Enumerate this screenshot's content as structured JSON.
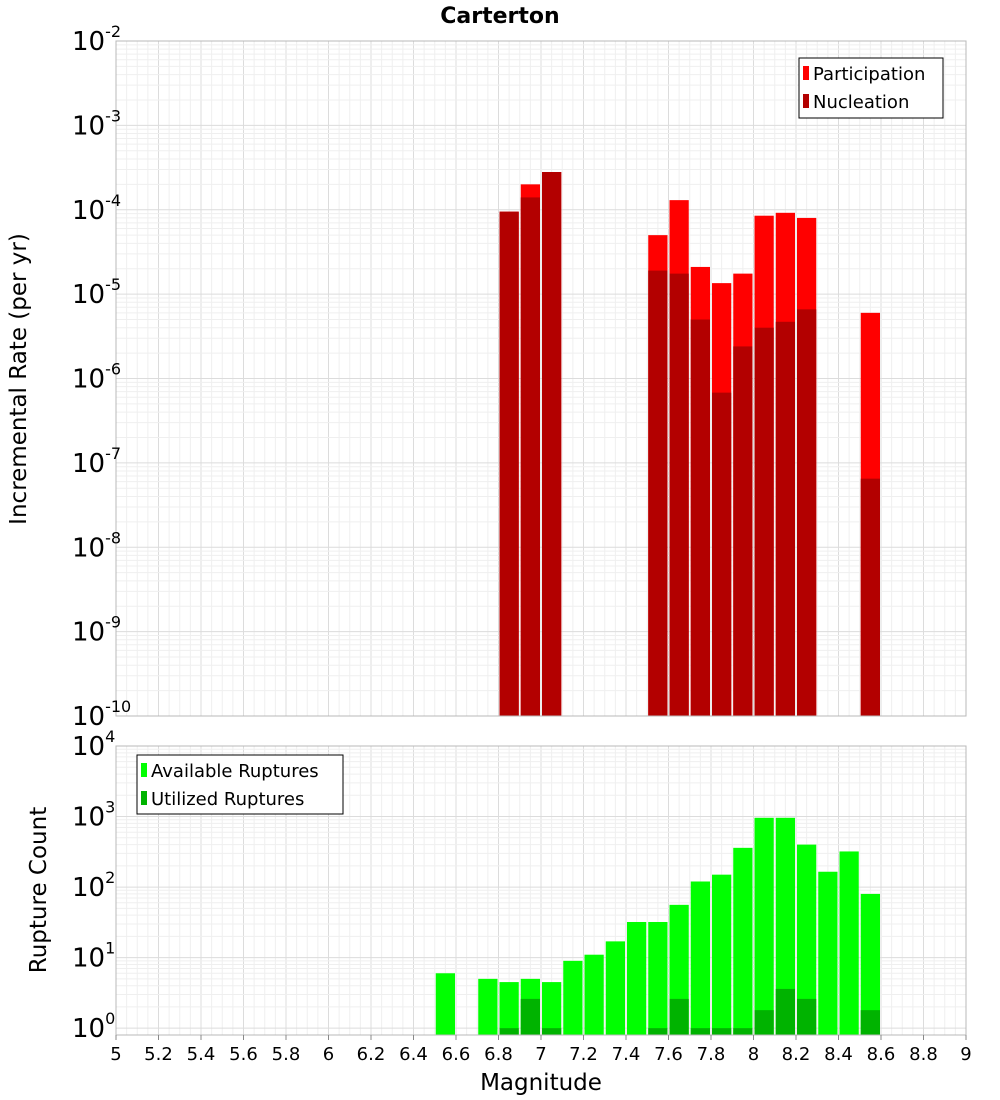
{
  "colors": {
    "participation": "#ff0000",
    "nucleation": "#b30000",
    "available": "#00ff00",
    "utilized": "#00b300",
    "grid_major": "#dcdcdc",
    "grid_minor": "#efefef",
    "frame": "#b8b8b8"
  },
  "chart_data": [
    {
      "type": "bar",
      "title": "Carterton",
      "xlabel": "",
      "ylabel": "Incremental Rate (per yr)",
      "yscale": "log",
      "ylim_exp": [
        -10,
        -2
      ],
      "xlim": [
        5,
        9
      ],
      "grid": true,
      "legend_placement": "top-right",
      "bin_width": 0.1,
      "series": [
        {
          "name": "Participation",
          "points": [
            {
              "x": 6.85,
              "y": 9.5e-05
            },
            {
              "x": 6.95,
              "y": 0.0002
            },
            {
              "x": 7.05,
              "y": 0.00028
            },
            {
              "x": 7.55,
              "y": 5e-05
            },
            {
              "x": 7.65,
              "y": 0.00013
            },
            {
              "x": 7.75,
              "y": 2.1e-05
            },
            {
              "x": 7.85,
              "y": 1.35e-05
            },
            {
              "x": 7.95,
              "y": 1.75e-05
            },
            {
              "x": 8.05,
              "y": 8.5e-05
            },
            {
              "x": 8.15,
              "y": 9.2e-05
            },
            {
              "x": 8.25,
              "y": 8e-05
            },
            {
              "x": 8.55,
              "y": 6e-06
            }
          ]
        },
        {
          "name": "Nucleation",
          "points": [
            {
              "x": 6.85,
              "y": 9.5e-05
            },
            {
              "x": 6.95,
              "y": 0.00014
            },
            {
              "x": 7.05,
              "y": 0.00028
            },
            {
              "x": 7.55,
              "y": 1.9e-05
            },
            {
              "x": 7.65,
              "y": 1.75e-05
            },
            {
              "x": 7.75,
              "y": 5e-06
            },
            {
              "x": 7.85,
              "y": 6.8e-07
            },
            {
              "x": 7.95,
              "y": 2.4e-06
            },
            {
              "x": 8.05,
              "y": 4e-06
            },
            {
              "x": 8.15,
              "y": 4.7e-06
            },
            {
              "x": 8.25,
              "y": 6.6e-06
            },
            {
              "x": 8.55,
              "y": 6.5e-08
            }
          ]
        }
      ]
    },
    {
      "type": "bar",
      "title": "",
      "xlabel": "Magnitude",
      "ylabel": "Rupture Count",
      "yscale": "log",
      "ylim_exp": [
        0,
        4
      ],
      "ymin": 0.8,
      "xlim": [
        5,
        9
      ],
      "grid": true,
      "legend_placement": "top-left",
      "bin_width": 0.1,
      "xticks": [
        "5",
        "5.2",
        "5.4",
        "5.6",
        "5.8",
        "6",
        "6.2",
        "6.4",
        "6.6",
        "6.8",
        "7",
        "7.2",
        "7.4",
        "7.6",
        "7.8",
        "8",
        "8.2",
        "8.4",
        "8.6",
        "8.8",
        "9"
      ],
      "series": [
        {
          "name": "Available Ruptures",
          "points": [
            {
              "x": 6.55,
              "y": 6
            },
            {
              "x": 6.75,
              "y": 5
            },
            {
              "x": 6.85,
              "y": 4.5
            },
            {
              "x": 6.95,
              "y": 5
            },
            {
              "x": 7.05,
              "y": 4.5
            },
            {
              "x": 7.15,
              "y": 9
            },
            {
              "x": 7.25,
              "y": 11
            },
            {
              "x": 7.35,
              "y": 17
            },
            {
              "x": 7.45,
              "y": 32
            },
            {
              "x": 7.55,
              "y": 32
            },
            {
              "x": 7.65,
              "y": 56
            },
            {
              "x": 7.75,
              "y": 120
            },
            {
              "x": 7.85,
              "y": 150
            },
            {
              "x": 7.95,
              "y": 360
            },
            {
              "x": 8.05,
              "y": 960
            },
            {
              "x": 8.15,
              "y": 960
            },
            {
              "x": 8.25,
              "y": 400
            },
            {
              "x": 8.35,
              "y": 165
            },
            {
              "x": 8.45,
              "y": 320
            },
            {
              "x": 8.55,
              "y": 80
            }
          ]
        },
        {
          "name": "Utilized Ruptures",
          "points": [
            {
              "x": 6.85,
              "y": 1
            },
            {
              "x": 6.95,
              "y": 2.6
            },
            {
              "x": 7.05,
              "y": 1
            },
            {
              "x": 7.55,
              "y": 1
            },
            {
              "x": 7.65,
              "y": 2.6
            },
            {
              "x": 7.75,
              "y": 1
            },
            {
              "x": 7.85,
              "y": 1
            },
            {
              "x": 7.95,
              "y": 1
            },
            {
              "x": 8.05,
              "y": 1.8
            },
            {
              "x": 8.15,
              "y": 3.6
            },
            {
              "x": 8.25,
              "y": 2.6
            },
            {
              "x": 8.55,
              "y": 1.8
            }
          ]
        }
      ]
    }
  ]
}
